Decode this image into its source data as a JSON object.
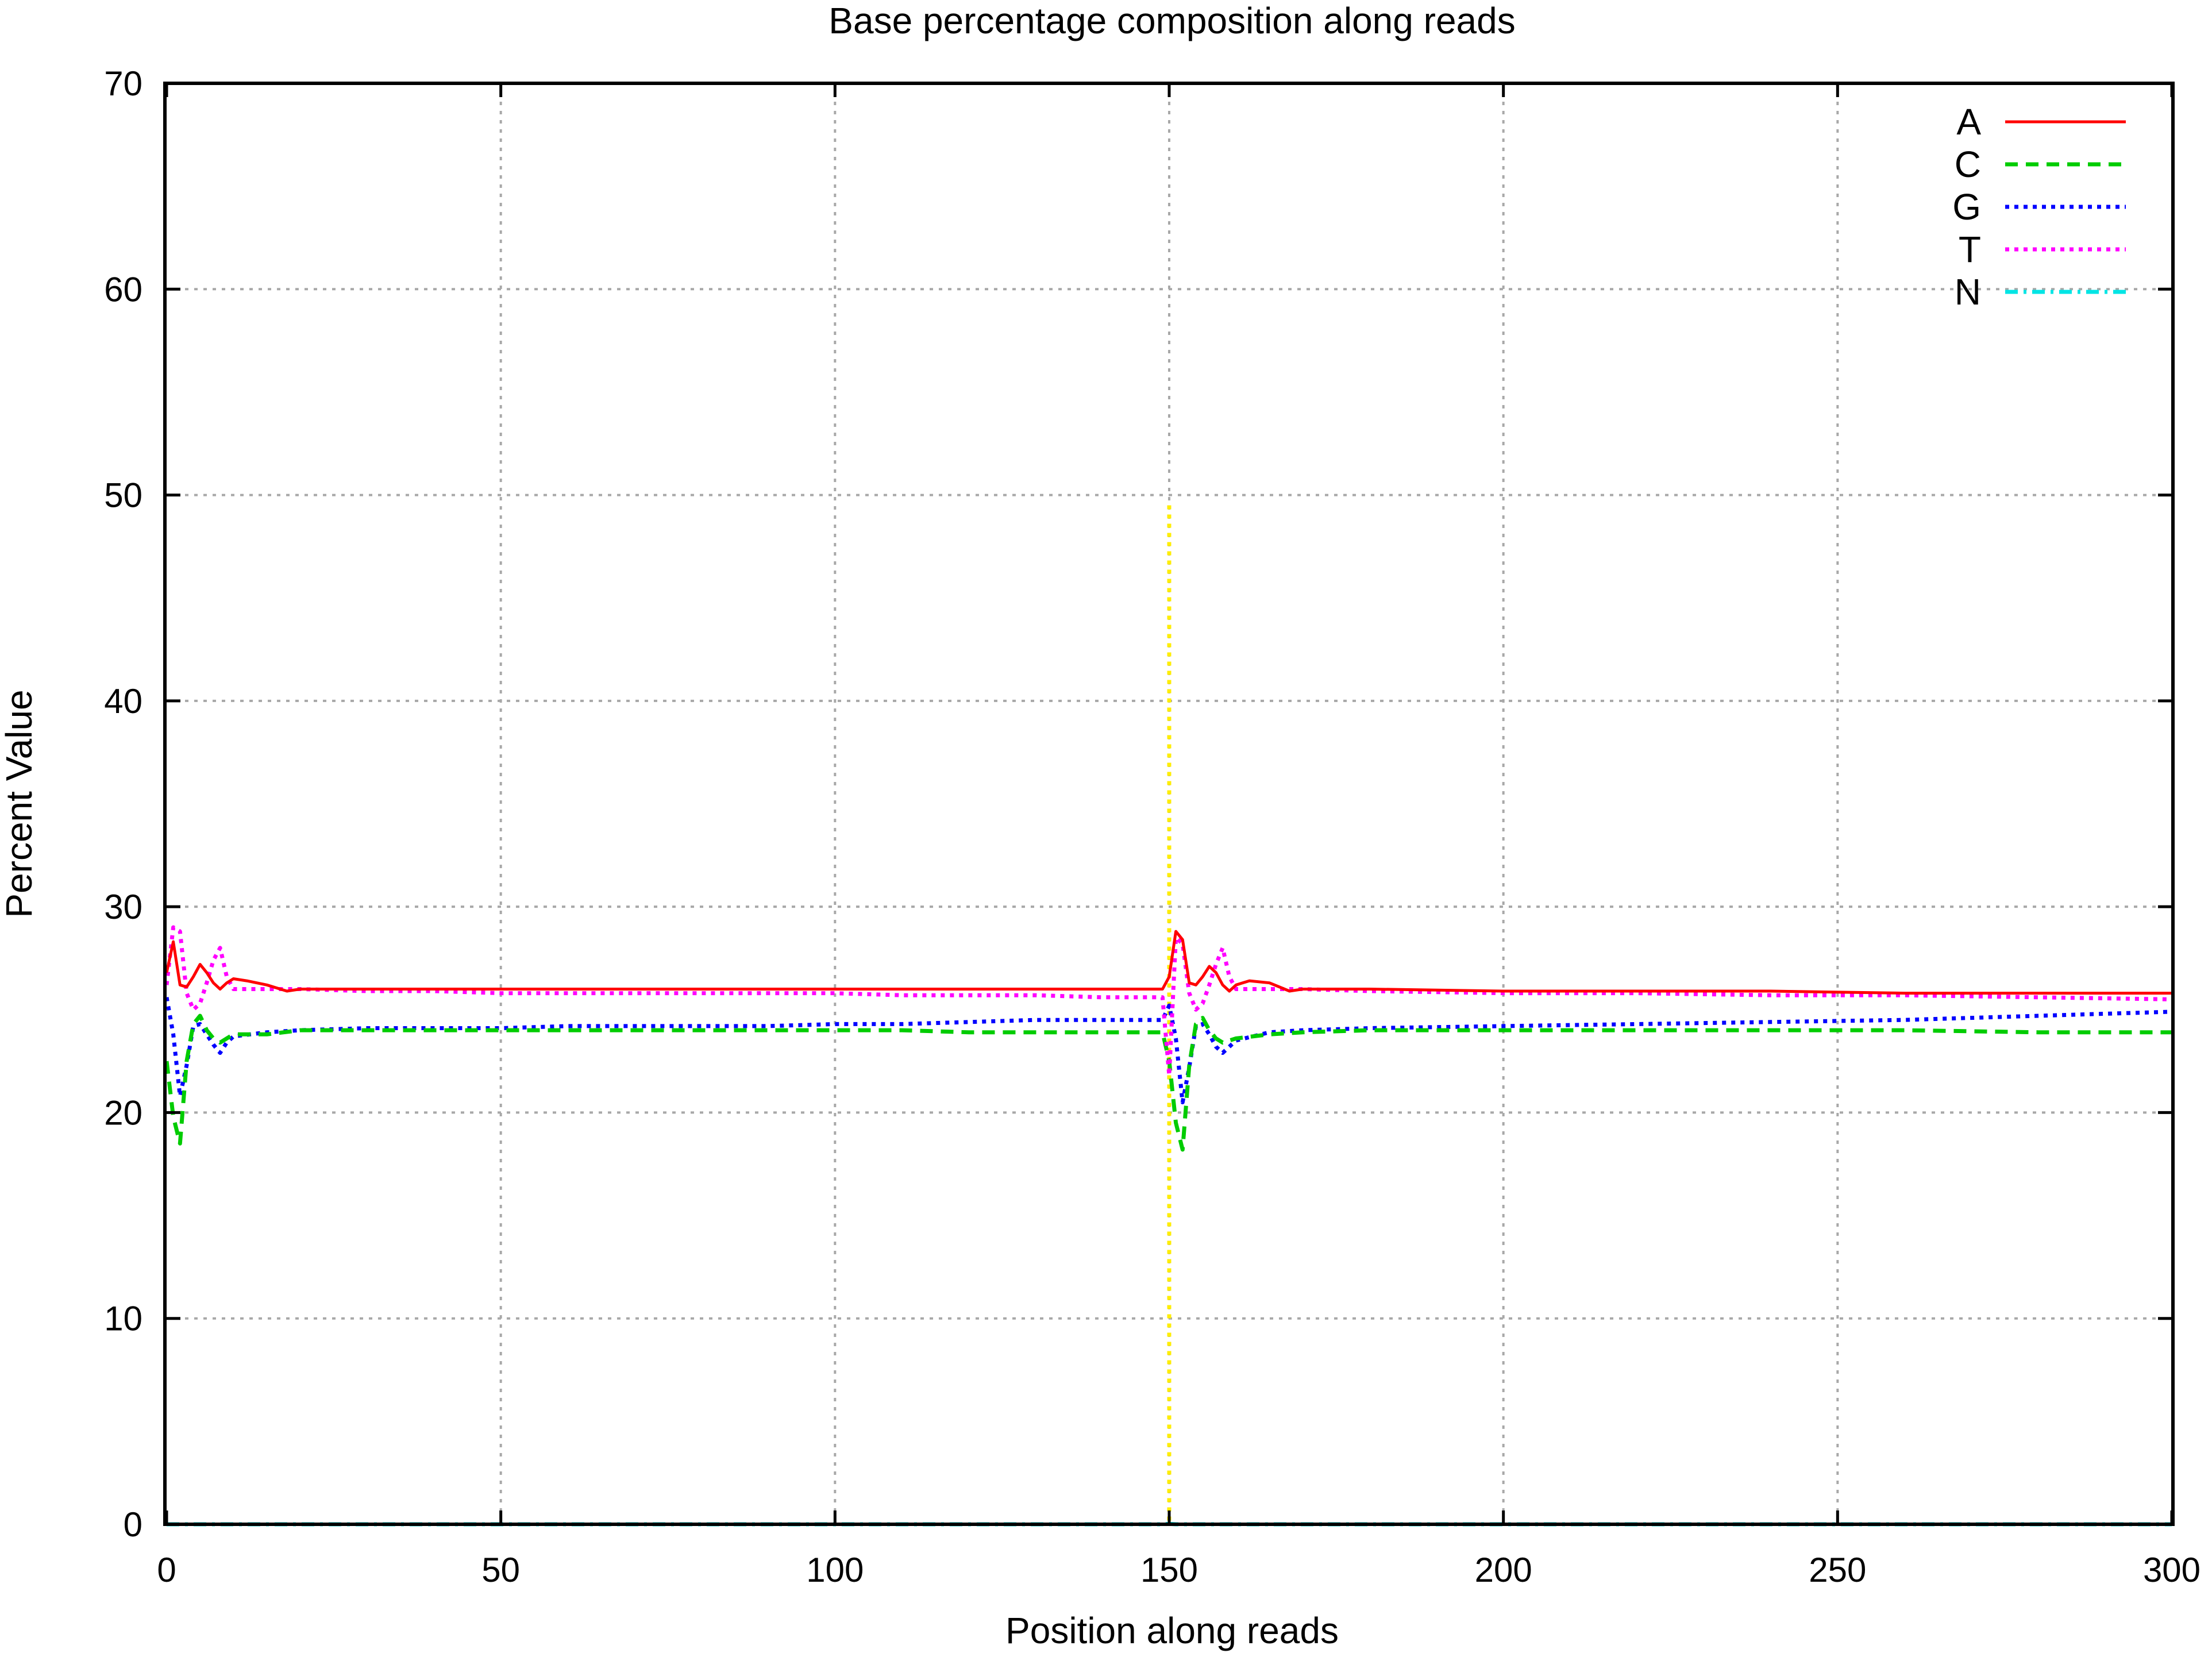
{
  "chart_data": {
    "type": "line",
    "title": "Base percentage composition along reads",
    "xlabel": "Position along reads",
    "ylabel": "Percent Value",
    "xlim": [
      0,
      300
    ],
    "ylim": [
      0,
      70
    ],
    "x_ticks": [
      "0",
      "50",
      "100",
      "150",
      "200",
      "250",
      "300"
    ],
    "y_ticks": [
      "0",
      "10",
      "20",
      "30",
      "40",
      "50",
      "60",
      "70"
    ],
    "grid": true,
    "legend_position": "top-right",
    "series": [
      {
        "name": "A",
        "color": "#ff0000",
        "dash": "solid",
        "points": [
          [
            0,
            26.8
          ],
          [
            1,
            28.3
          ],
          [
            2,
            26.2
          ],
          [
            3,
            26.1
          ],
          [
            4,
            26.6
          ],
          [
            5,
            27.2
          ],
          [
            6,
            26.8
          ],
          [
            7,
            26.3
          ],
          [
            8,
            26.0
          ],
          [
            9,
            26.3
          ],
          [
            10,
            26.5
          ],
          [
            12,
            26.4
          ],
          [
            15,
            26.2
          ],
          [
            18,
            25.9
          ],
          [
            20,
            26.0
          ],
          [
            25,
            26.0
          ],
          [
            30,
            26.0
          ],
          [
            40,
            26.0
          ],
          [
            50,
            26.0
          ],
          [
            60,
            26.0
          ],
          [
            70,
            26.0
          ],
          [
            80,
            26.0
          ],
          [
            90,
            26.0
          ],
          [
            100,
            26.0
          ],
          [
            110,
            26.0
          ],
          [
            120,
            26.0
          ],
          [
            130,
            26.0
          ],
          [
            140,
            26.0
          ],
          [
            149,
            26.0
          ],
          [
            150,
            26.6
          ],
          [
            151,
            28.8
          ],
          [
            152,
            28.4
          ],
          [
            153,
            26.3
          ],
          [
            154,
            26.2
          ],
          [
            155,
            26.6
          ],
          [
            156,
            27.1
          ],
          [
            157,
            26.8
          ],
          [
            158,
            26.2
          ],
          [
            159,
            25.9
          ],
          [
            160,
            26.2
          ],
          [
            162,
            26.4
          ],
          [
            165,
            26.3
          ],
          [
            168,
            25.9
          ],
          [
            170,
            26.0
          ],
          [
            180,
            26.0
          ],
          [
            200,
            25.9
          ],
          [
            220,
            25.9
          ],
          [
            240,
            25.9
          ],
          [
            260,
            25.8
          ],
          [
            280,
            25.8
          ],
          [
            300,
            25.8
          ]
        ]
      },
      {
        "name": "C",
        "color": "#00cc00",
        "dash": "dashed",
        "points": [
          [
            0,
            22.5
          ],
          [
            1,
            19.8
          ],
          [
            2,
            18.5
          ],
          [
            3,
            22.5
          ],
          [
            4,
            24.3
          ],
          [
            5,
            24.7
          ],
          [
            6,
            24.0
          ],
          [
            7,
            23.6
          ],
          [
            8,
            23.4
          ],
          [
            9,
            23.6
          ],
          [
            10,
            23.8
          ],
          [
            15,
            23.8
          ],
          [
            20,
            24.0
          ],
          [
            30,
            24.0
          ],
          [
            40,
            24.0
          ],
          [
            50,
            24.0
          ],
          [
            60,
            24.0
          ],
          [
            70,
            24.0
          ],
          [
            80,
            24.0
          ],
          [
            90,
            24.0
          ],
          [
            100,
            24.0
          ],
          [
            110,
            24.0
          ],
          [
            120,
            23.9
          ],
          [
            130,
            23.9
          ],
          [
            140,
            23.9
          ],
          [
            149,
            23.9
          ],
          [
            150,
            22.5
          ],
          [
            151,
            19.5
          ],
          [
            152,
            18.2
          ],
          [
            153,
            22.3
          ],
          [
            154,
            24.3
          ],
          [
            155,
            24.6
          ],
          [
            156,
            24.0
          ],
          [
            157,
            23.6
          ],
          [
            158,
            23.4
          ],
          [
            160,
            23.6
          ],
          [
            165,
            23.8
          ],
          [
            170,
            23.9
          ],
          [
            180,
            24.0
          ],
          [
            200,
            24.0
          ],
          [
            220,
            24.0
          ],
          [
            240,
            24.0
          ],
          [
            260,
            24.0
          ],
          [
            280,
            23.9
          ],
          [
            300,
            23.9
          ]
        ]
      },
      {
        "name": "G",
        "color": "#0000ff",
        "dash": "dotted",
        "points": [
          [
            0,
            25.6
          ],
          [
            1,
            23.8
          ],
          [
            2,
            20.8
          ],
          [
            3,
            22.3
          ],
          [
            4,
            24.2
          ],
          [
            5,
            24.3
          ],
          [
            6,
            23.8
          ],
          [
            7,
            23.3
          ],
          [
            8,
            22.9
          ],
          [
            9,
            23.4
          ],
          [
            10,
            23.7
          ],
          [
            15,
            23.9
          ],
          [
            20,
            24.0
          ],
          [
            30,
            24.1
          ],
          [
            40,
            24.1
          ],
          [
            50,
            24.1
          ],
          [
            60,
            24.2
          ],
          [
            70,
            24.2
          ],
          [
            80,
            24.2
          ],
          [
            90,
            24.2
          ],
          [
            100,
            24.3
          ],
          [
            110,
            24.3
          ],
          [
            120,
            24.4
          ],
          [
            130,
            24.5
          ],
          [
            140,
            24.5
          ],
          [
            149,
            24.5
          ],
          [
            150,
            25.2
          ],
          [
            151,
            23.6
          ],
          [
            152,
            20.5
          ],
          [
            153,
            22.2
          ],
          [
            154,
            24.2
          ],
          [
            155,
            24.3
          ],
          [
            156,
            23.8
          ],
          [
            157,
            23.2
          ],
          [
            158,
            22.9
          ],
          [
            160,
            23.5
          ],
          [
            165,
            23.9
          ],
          [
            170,
            24.0
          ],
          [
            180,
            24.1
          ],
          [
            200,
            24.2
          ],
          [
            220,
            24.3
          ],
          [
            240,
            24.4
          ],
          [
            260,
            24.5
          ],
          [
            280,
            24.7
          ],
          [
            300,
            24.9
          ]
        ]
      },
      {
        "name": "T",
        "color": "#ff00ff",
        "dash": "dotted",
        "points": [
          [
            0,
            26.2
          ],
          [
            1,
            29.0
          ],
          [
            2,
            28.8
          ],
          [
            3,
            25.8
          ],
          [
            4,
            25.0
          ],
          [
            5,
            25.3
          ],
          [
            6,
            26.3
          ],
          [
            7,
            27.4
          ],
          [
            8,
            28.0
          ],
          [
            9,
            26.6
          ],
          [
            10,
            26.0
          ],
          [
            15,
            26.0
          ],
          [
            20,
            26.0
          ],
          [
            30,
            25.9
          ],
          [
            40,
            25.9
          ],
          [
            50,
            25.8
          ],
          [
            60,
            25.8
          ],
          [
            70,
            25.8
          ],
          [
            80,
            25.8
          ],
          [
            90,
            25.8
          ],
          [
            100,
            25.8
          ],
          [
            110,
            25.7
          ],
          [
            120,
            25.7
          ],
          [
            130,
            25.7
          ],
          [
            140,
            25.6
          ],
          [
            149,
            25.6
          ],
          [
            150,
            21.8
          ],
          [
            151,
            28.5
          ],
          [
            152,
            28.2
          ],
          [
            153,
            25.8
          ],
          [
            154,
            25.0
          ],
          [
            155,
            25.3
          ],
          [
            156,
            26.2
          ],
          [
            157,
            27.2
          ],
          [
            158,
            28.0
          ],
          [
            159,
            26.6
          ],
          [
            160,
            26.0
          ],
          [
            165,
            26.0
          ],
          [
            170,
            26.0
          ],
          [
            180,
            25.9
          ],
          [
            200,
            25.8
          ],
          [
            220,
            25.8
          ],
          [
            240,
            25.7
          ],
          [
            260,
            25.7
          ],
          [
            280,
            25.6
          ],
          [
            300,
            25.5
          ]
        ]
      },
      {
        "name": "N",
        "color": "#00e5e5",
        "dash": "dashdot",
        "points": [
          [
            0,
            0
          ],
          [
            149,
            0
          ],
          [
            150,
            0.02
          ],
          [
            151,
            0
          ],
          [
            300,
            0
          ]
        ]
      },
      {
        "name": "",
        "color": "#ffee00",
        "dash": "dotted",
        "points": [
          [
            150,
            49.5
          ],
          [
            150,
            0
          ]
        ]
      }
    ]
  }
}
